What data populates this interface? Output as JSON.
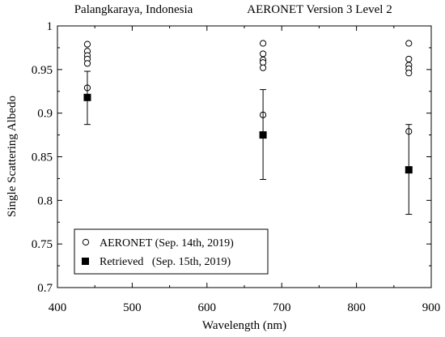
{
  "chart_data": {
    "type": "scatter",
    "title_left": "Palangkaraya, Indonesia",
    "title_right": "AERONET  Version 3  Level 2",
    "xlabel": "Wavelength (nm)",
    "ylabel": "Single Scattering Albedo",
    "xlim": [
      400,
      900
    ],
    "ylim": [
      0.7,
      1.0
    ],
    "xticks": [
      400,
      500,
      600,
      700,
      800,
      900
    ],
    "yticks": [
      0.7,
      0.75,
      0.8,
      0.85,
      0.9,
      0.95,
      1.0
    ],
    "ytick_labels": [
      "0.7",
      "0.75",
      "0.8",
      "0.85",
      "0.9",
      "0.95",
      "1"
    ],
    "grid": false,
    "legend_position": "bottom-left",
    "series": [
      {
        "name": "AERONET (Sep. 14th, 2019)",
        "marker": "open-circle",
        "points": [
          {
            "x": 440,
            "y": 0.979
          },
          {
            "x": 440,
            "y": 0.971
          },
          {
            "x": 440,
            "y": 0.966
          },
          {
            "x": 440,
            "y": 0.962
          },
          {
            "x": 440,
            "y": 0.957
          },
          {
            "x": 440,
            "y": 0.929
          },
          {
            "x": 675,
            "y": 0.98
          },
          {
            "x": 675,
            "y": 0.968
          },
          {
            "x": 675,
            "y": 0.961
          },
          {
            "x": 675,
            "y": 0.958
          },
          {
            "x": 675,
            "y": 0.952
          },
          {
            "x": 675,
            "y": 0.898
          },
          {
            "x": 870,
            "y": 0.98
          },
          {
            "x": 870,
            "y": 0.962
          },
          {
            "x": 870,
            "y": 0.955
          },
          {
            "x": 870,
            "y": 0.951
          },
          {
            "x": 870,
            "y": 0.946
          },
          {
            "x": 870,
            "y": 0.879
          }
        ]
      },
      {
        "name": "Retrieved   (Sep. 15th, 2019)",
        "marker": "filled-square",
        "points": [
          {
            "x": 440,
            "y": 0.918,
            "err_low": 0.887,
            "err_high": 0.948
          },
          {
            "x": 675,
            "y": 0.875,
            "err_low": 0.824,
            "err_high": 0.927
          },
          {
            "x": 870,
            "y": 0.835,
            "err_low": 0.784,
            "err_high": 0.887
          }
        ]
      }
    ]
  }
}
